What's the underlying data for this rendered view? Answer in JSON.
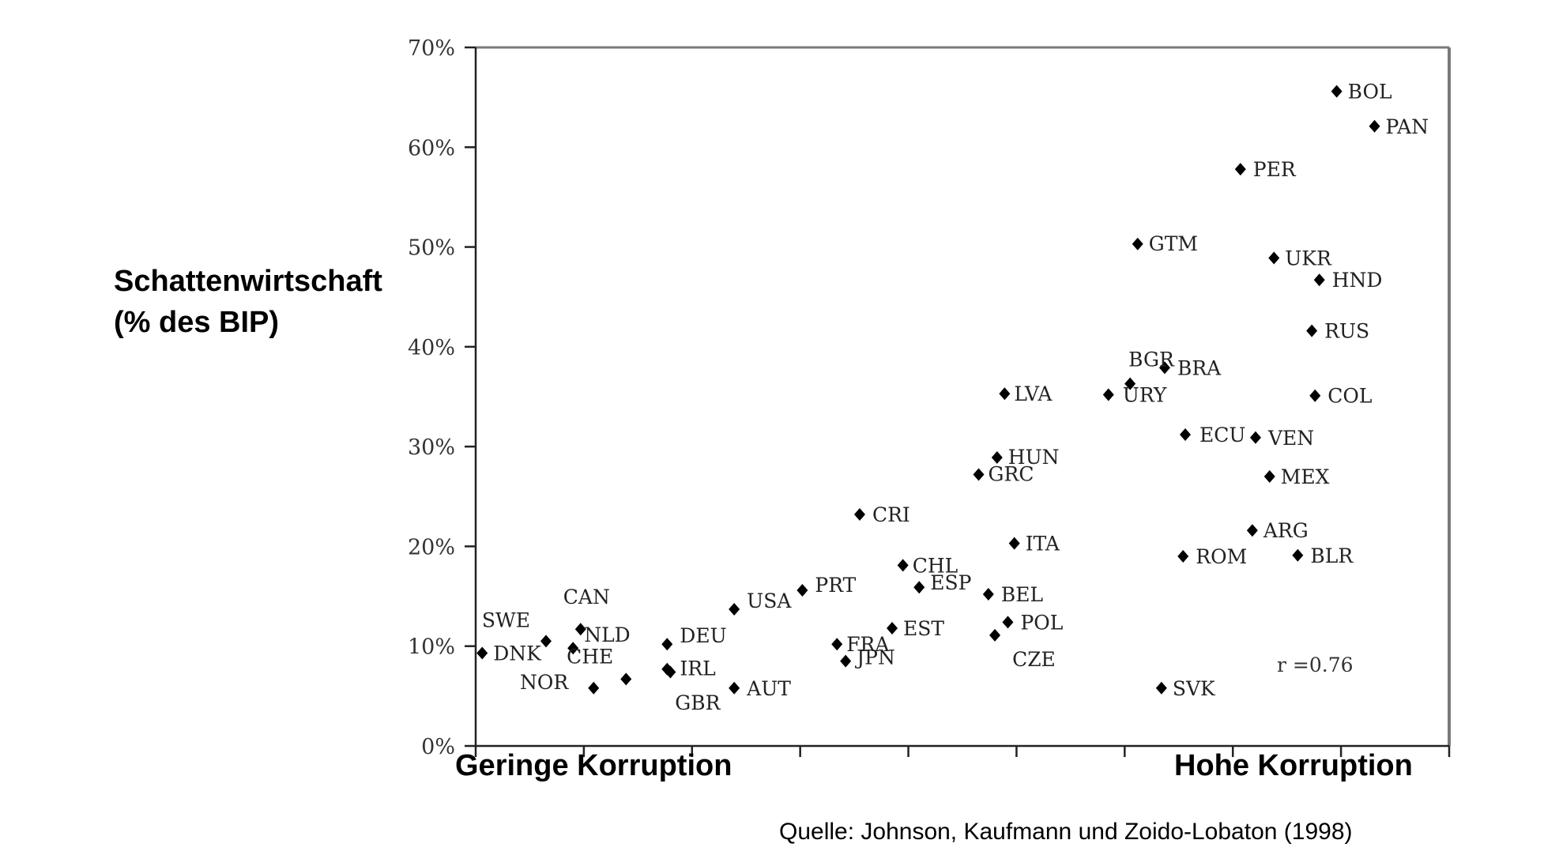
{
  "chart_data": {
    "type": "scatter",
    "ylabel_lines": [
      "Schattenwirtschaft",
      "(% des BIP)"
    ],
    "xlabel_left": "Geringe Korruption",
    "xlabel_right": "Hohe Korruption",
    "source": "Quelle: Johnson, Kaufmann und Zoido-Lobaton (1998)",
    "correlation": "r =0.76",
    "ylim": [
      0,
      70
    ],
    "xlim": [
      0,
      9
    ],
    "y_ticks": [
      "0%",
      "10%",
      "20%",
      "30%",
      "40%",
      "50%",
      "60%",
      "70%"
    ],
    "grid": false,
    "points": [
      {
        "label": "DNK",
        "x": 0.06,
        "y": 9.3
      },
      {
        "label": "SWE",
        "x": 0.65,
        "y": 10.5
      },
      {
        "label": "CAN",
        "x": 0.97,
        "y": 11.7
      },
      {
        "label": "NLD",
        "x": 0.9,
        "y": 9.8
      },
      {
        "label": "NOR",
        "x": 1.09,
        "y": 5.8
      },
      {
        "label": "CHE",
        "x": 1.39,
        "y": 6.7
      },
      {
        "label": "DEU",
        "x": 1.77,
        "y": 10.2
      },
      {
        "label": "IRL",
        "x": 1.8,
        "y": 7.4
      },
      {
        "label": "GBR",
        "x": 1.77,
        "y": 7.7
      },
      {
        "label": "USA",
        "x": 2.39,
        "y": 13.7
      },
      {
        "label": "AUT",
        "x": 2.39,
        "y": 5.8
      },
      {
        "label": "PRT",
        "x": 3.02,
        "y": 15.6
      },
      {
        "label": "FRA",
        "x": 3.34,
        "y": 10.2
      },
      {
        "label": "JPN",
        "x": 3.42,
        "y": 8.5
      },
      {
        "label": "CRI",
        "x": 3.55,
        "y": 23.2
      },
      {
        "label": "EST",
        "x": 3.85,
        "y": 11.8
      },
      {
        "label": "CHL",
        "x": 3.95,
        "y": 18.1
      },
      {
        "label": "ESP",
        "x": 4.1,
        "y": 15.9
      },
      {
        "label": "GRC",
        "x": 4.65,
        "y": 27.2
      },
      {
        "label": "HUN",
        "x": 4.82,
        "y": 28.9
      },
      {
        "label": "BEL",
        "x": 4.74,
        "y": 15.2
      },
      {
        "label": "CZE",
        "x": 4.8,
        "y": 11.1
      },
      {
        "label": "POL",
        "x": 4.92,
        "y": 12.4
      },
      {
        "label": "LVA",
        "x": 4.89,
        "y": 35.3
      },
      {
        "label": "ITA",
        "x": 4.98,
        "y": 20.3
      },
      {
        "label": "URY",
        "x": 5.85,
        "y": 35.2
      },
      {
        "label": "BGR",
        "x": 6.05,
        "y": 36.3
      },
      {
        "label": "GTM",
        "x": 6.12,
        "y": 50.3
      },
      {
        "label": "BRA",
        "x": 6.37,
        "y": 37.9
      },
      {
        "label": "ECU",
        "x": 6.56,
        "y": 31.2
      },
      {
        "label": "ROM",
        "x": 6.54,
        "y": 19.0
      },
      {
        "label": "SVK",
        "x": 6.34,
        "y": 5.8
      },
      {
        "label": "PER",
        "x": 7.07,
        "y": 57.8
      },
      {
        "label": "VEN",
        "x": 7.21,
        "y": 30.9
      },
      {
        "label": "ARG",
        "x": 7.18,
        "y": 21.6
      },
      {
        "label": "MEX",
        "x": 7.34,
        "y": 27.0
      },
      {
        "label": "UKR",
        "x": 7.38,
        "y": 48.9
      },
      {
        "label": "BLR",
        "x": 7.6,
        "y": 19.1
      },
      {
        "label": "RUS",
        "x": 7.73,
        "y": 41.6
      },
      {
        "label": "COL",
        "x": 7.76,
        "y": 35.1
      },
      {
        "label": "HND",
        "x": 7.8,
        "y": 46.7
      },
      {
        "label": "BOL",
        "x": 7.96,
        "y": 65.6
      },
      {
        "label": "PAN",
        "x": 8.31,
        "y": 62.1
      }
    ]
  }
}
